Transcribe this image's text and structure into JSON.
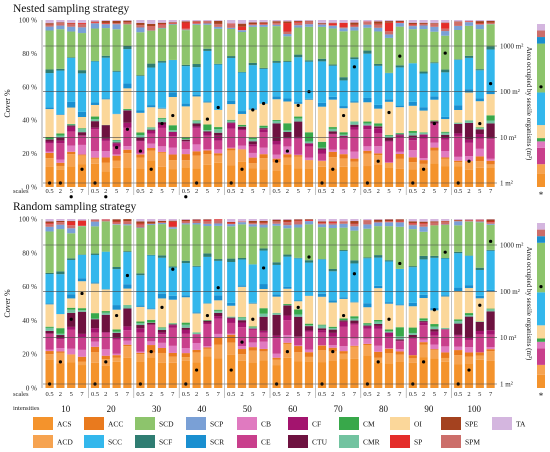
{
  "chart_data": {
    "type": "bar",
    "stacked": true,
    "scales": [
      "0.5",
      "2",
      "5",
      "7"
    ],
    "intensities": [
      "10",
      "20",
      "30",
      "40",
      "50",
      "60",
      "70",
      "80",
      "90",
      "100"
    ],
    "row_labels": {
      "scales": "scales",
      "intensities": "intensities"
    },
    "ylabel": "Cover %",
    "y_ticks": [
      "0 %",
      "20 %",
      "40 %",
      "60 %",
      "80 %",
      "100 %"
    ],
    "ylim": [
      0,
      100
    ],
    "right_axis": {
      "label": "Area occupied by sessile organisms (m²)",
      "ticks": [
        "1 m²",
        "10 m²",
        "100 m²",
        "1000 m²"
      ],
      "scale": "log",
      "star": "*"
    },
    "categories": [
      "ACS",
      "ACC",
      "SCD",
      "SCP",
      "CB",
      "CF",
      "CM",
      "OI",
      "SPE",
      "TA",
      "ACD",
      "SCC",
      "SCF",
      "SCR",
      "CE",
      "CTU",
      "CMR",
      "SP",
      "SPM"
    ],
    "category_colors": {
      "ACS": "#f4932c",
      "ACC": "#e97a1e",
      "SCD": "#8dc46c",
      "SCP": "#7aa0d6",
      "CB": "#e07ac0",
      "CF": "#a3146e",
      "CM": "#38a84a",
      "OI": "#fbd79a",
      "SPE": "#a4421f",
      "TA": "#d4b6df",
      "ACD": "#f6a350",
      "SCC": "#33b7ec",
      "SCF": "#2f7d72",
      "SCR": "#1a8fd0",
      "CE": "#c93f8c",
      "CTU": "#6e1240",
      "CMR": "#72c3a0",
      "SP": "#e42d2a",
      "SPM": "#cc6e6a"
    },
    "panels": [
      {
        "title": "Nested sampling strategy",
        "area_points": [
          1,
          1,
          0.5,
          2,
          1,
          0.5,
          6,
          15,
          5,
          2,
          20,
          30,
          0.5,
          1,
          25,
          45,
          1,
          2,
          40,
          55,
          3,
          5,
          50,
          100,
          1,
          2,
          30,
          350,
          1,
          3,
          35,
          600,
          1,
          2,
          20,
          700,
          1,
          3,
          20,
          150
        ]
      },
      {
        "title": "Random sampling strategy",
        "area_points": [
          1,
          3,
          25,
          90,
          1,
          3,
          30,
          220,
          1,
          5,
          45,
          300,
          1,
          2,
          30,
          120,
          2,
          8,
          25,
          320,
          1,
          5,
          45,
          550,
          1,
          5,
          30,
          240,
          1,
          3,
          25,
          400,
          1,
          3,
          40,
          700,
          1,
          2,
          50,
          1200
        ]
      }
    ],
    "legend_rows": [
      [
        "ACS",
        "ACC",
        "SCD",
        "SCP",
        "CB",
        "CF",
        "CM",
        "OI",
        "SPE",
        "TA"
      ],
      [
        "ACD",
        "SCC",
        "SCF",
        "SCR",
        "CE",
        "CTU",
        "CMR",
        "SP",
        "SPM"
      ]
    ]
  }
}
